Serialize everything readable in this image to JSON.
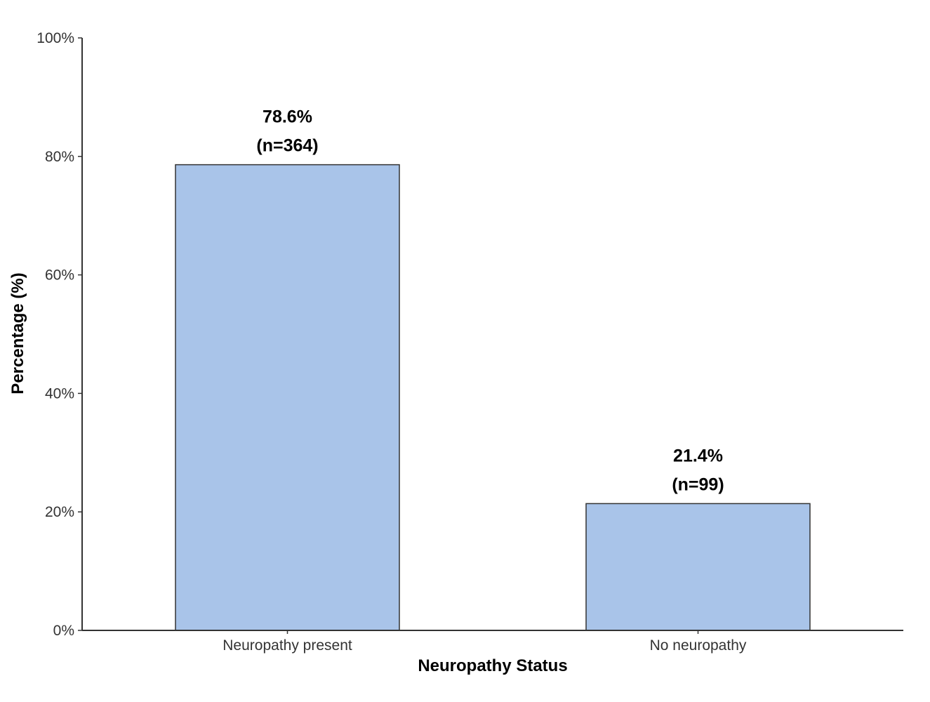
{
  "chart_data": {
    "type": "bar",
    "title": "",
    "xlabel": "Neuropathy Status",
    "ylabel": "Percentage (%)",
    "categories": [
      "Neuropathy present",
      "No neuropathy"
    ],
    "values": [
      78.6,
      21.4
    ],
    "counts": [
      "(n=364)",
      "(n=99)"
    ],
    "value_labels": [
      "78.6%",
      "21.4%"
    ],
    "ylim": [
      0,
      100
    ],
    "yticks": [
      0,
      20,
      40,
      60,
      80,
      100
    ],
    "ytick_labels": [
      "0%",
      "20%",
      "40%",
      "60%",
      "80%",
      "100%"
    ],
    "grid": false,
    "legend": "none",
    "colors": {
      "bar_fill": "#a9c4e9",
      "bar_stroke": "#333333",
      "axis": "#333333"
    }
  }
}
